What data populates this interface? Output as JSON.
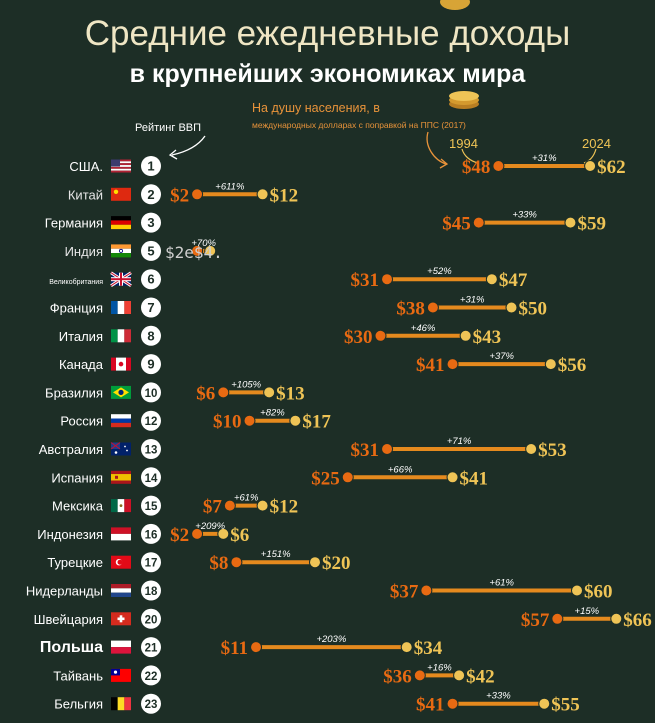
{
  "title": "Средние ежедневные доходы",
  "subtitle": "в крупнейших экономиках мира",
  "rank_label": "Рейтинг ВВП",
  "per_capita_label": "На душу населения, в",
  "per_capita_sub": "международных долларах с поправкой на ППС (2017)",
  "year_start": "1994",
  "year_end": "2024",
  "colors": {
    "start": "#e86a12",
    "end": "#efc456",
    "bar": "#e58a1e",
    "background": "#1d2e26"
  },
  "chart_data": {
    "type": "dumbbell",
    "title": "Средние ежедневные доходы",
    "subtitle": "в крупнейших экономиках мира",
    "unit": "$",
    "rows": [
      {
        "country": "США.",
        "flag": "us-flag-icon",
        "rank": "1",
        "v1994": 48,
        "v2024": 62,
        "change": "+31%",
        "l1994": "$48",
        "l2024": "$62"
      },
      {
        "country": "Китай",
        "flag": "cn-flag-icon",
        "rank": "2",
        "v1994": 2,
        "v2024": 12,
        "change": "+611%",
        "l1994": "$2",
        "l2024": "$12"
      },
      {
        "country": "Германия",
        "flag": "de-flag-icon",
        "rank": "3",
        "v1994": 45,
        "v2024": 59,
        "change": "+33%",
        "l1994": "$45",
        "l2024": "$59"
      },
      {
        "country": "Индия",
        "flag": "in-flag-icon",
        "rank": "5",
        "v1994": 2,
        "v2024": 4,
        "change": "+70%",
        "l1994": "$2e$4.",
        "l2024": ""
      },
      {
        "country": "Великобритания",
        "flag": "gb-flag-icon",
        "rank": "6",
        "v1994": 31,
        "v2024": 47,
        "change": "+52%",
        "l1994": "$31",
        "l2024": "$47"
      },
      {
        "country": "Франция",
        "flag": "fr-flag-icon",
        "rank": "7",
        "v1994": 38,
        "v2024": 50,
        "change": "+31%",
        "l1994": "$38",
        "l2024": "$50"
      },
      {
        "country": "Италия",
        "flag": "it-flag-icon",
        "rank": "8",
        "v1994": 30,
        "v2024": 43,
        "change": "+46%",
        "l1994": "$30",
        "l2024": "$43"
      },
      {
        "country": "Канада",
        "flag": "ca-flag-icon",
        "rank": "9",
        "v1994": 41,
        "v2024": 56,
        "change": "+37%",
        "l1994": "$41",
        "l2024": "$56"
      },
      {
        "country": "Бразилия",
        "flag": "br-flag-icon",
        "rank": "10",
        "v1994": 6,
        "v2024": 13,
        "change": "+105%",
        "l1994": "$6",
        "l2024": "$13"
      },
      {
        "country": "Россия",
        "flag": "ru-flag-icon",
        "rank": "12",
        "v1994": 10,
        "v2024": 17,
        "change": "+82%",
        "l1994": "$10",
        "l2024": "$17"
      },
      {
        "country": "Австралия",
        "flag": "au-flag-icon",
        "rank": "13",
        "v1994": 31,
        "v2024": 53,
        "change": "+71%",
        "l1994": "$31",
        "l2024": "$53"
      },
      {
        "country": "Испания",
        "flag": "es-flag-icon",
        "rank": "14",
        "v1994": 25,
        "v2024": 41,
        "change": "+66%",
        "l1994": "$25",
        "l2024": "$41"
      },
      {
        "country": "Мексика",
        "flag": "mx-flag-icon",
        "rank": "15",
        "v1994": 7,
        "v2024": 12,
        "change": "+61%",
        "l1994": "$7",
        "l2024": "$12"
      },
      {
        "country": "Индонезия",
        "flag": "id-flag-icon",
        "rank": "16",
        "v1994": 2,
        "v2024": 6,
        "change": "+209%",
        "l1994": "$2",
        "l2024": "$6"
      },
      {
        "country": "Турецкие",
        "flag": "tr-flag-icon",
        "rank": "17",
        "v1994": 8,
        "v2024": 20,
        "change": "+151%",
        "l1994": "$8",
        "l2024": "$20"
      },
      {
        "country": "Нидерланды",
        "flag": "nl-flag-icon",
        "rank": "18",
        "v1994": 37,
        "v2024": 60,
        "change": "+61%",
        "l1994": "$37",
        "l2024": "$60"
      },
      {
        "country": "Швейцария",
        "flag": "ch-flag-icon",
        "rank": "20",
        "v1994": 57,
        "v2024": 66,
        "change": "+15%",
        "l1994": "$57",
        "l2024": "$66"
      },
      {
        "country": "Польша",
        "flag": "pl-flag-icon",
        "rank": "21",
        "v1994": 11,
        "v2024": 34,
        "change": "+203%",
        "l1994": "$11",
        "l2024": "$34"
      },
      {
        "country": "Тайвань",
        "flag": "tw-flag-icon",
        "rank": "22",
        "v1994": 36,
        "v2024": 42,
        "change": "+16%",
        "l1994": "$36",
        "l2024": "$42"
      },
      {
        "country": "Бельгия",
        "flag": "be-flag-icon",
        "rank": "23",
        "v1994": 41,
        "v2024": 55,
        "change": "+33%",
        "l1994": "$41",
        "l2024": "$55"
      }
    ]
  }
}
